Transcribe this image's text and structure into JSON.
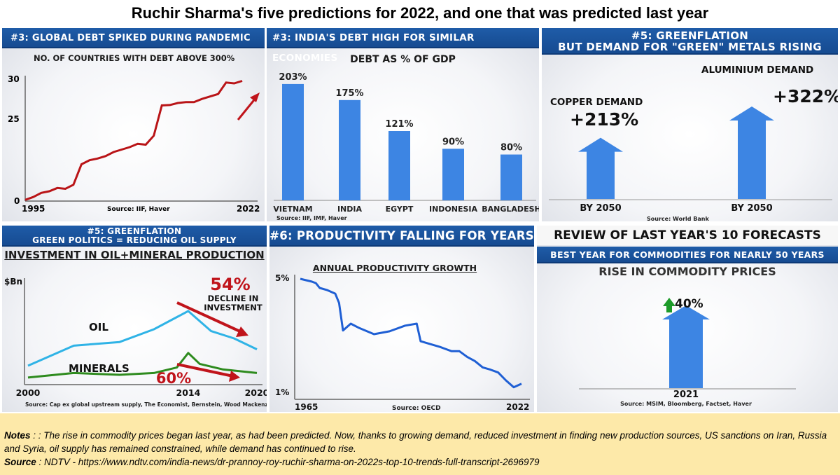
{
  "title": "Ruchir Sharma's five predictions for 2022, and one that was predicted last year",
  "colors": {
    "banner": "#1f5ca8",
    "bar": "#3d85e3",
    "red": "#c0141b",
    "oil": "#2fb3e6",
    "minerals": "#2e8b1e",
    "productivity": "#1f5fd4",
    "green_arrow": "#1e9b2a",
    "notes_bg": "#fde9a9"
  },
  "panels": {
    "p1": {
      "banner": "#3: GLOBAL DEBT SPIKED DURING PANDEMIC",
      "chart_title": "NO. OF COUNTRIES WITH DEBT ABOVE 300%",
      "source": "Source: IIF, Haver"
    },
    "p2": {
      "banner": "#3: INDIA'S DEBT HIGH FOR SIMILAR ECONOMIES",
      "chart_title": "DEBT AS % OF GDP",
      "source": "Source: IIF, IMF, Haver"
    },
    "p3": {
      "banner_line1": "#5: GREENFLATION",
      "banner_line2": "BUT DEMAND FOR \"GREEN\" METALS RISING",
      "source": "Source: World Bank"
    },
    "p4": {
      "banner_line1": "#5: GREENFLATION",
      "banner_line2": "GREEN POLITICS = REDUCING OIL SUPPLY",
      "chart_title": "INVESTMENT IN OIL+MINERAL PRODUCTION",
      "source": "Source: Cap ex global upstream supply, The Economist, Bernstein, Wood Mackenzie"
    },
    "p5": {
      "banner": "#6: PRODUCTIVITY FALLING FOR YEARS",
      "chart_title": "ANNUAL PRODUCTIVITY GROWTH",
      "source": "Source: OECD"
    },
    "p6": {
      "header": "REVIEW OF LAST YEAR'S 10 FORECASTS",
      "banner": "BEST YEAR FOR COMMODITIES FOR NEARLY 50 YEARS",
      "chart_title": "RISE IN COMMODITY PRICES",
      "source": "Source: MSIM, Bloomberg, Factset, Haver"
    }
  },
  "notes": {
    "label": "Notes",
    "text": " : : The rise in commodity prices began last year, as had been predicted.  Now, thanks to growing demand, reduced investment in finding new production sources, US sanctions on Iran, Russia and Syria, oil supply has remained constrained, while demand has continued to rise.",
    "source_label": "Source",
    "source_text": " : NDTV - https://www.ndtv.com/india-news/dr-prannoy-roy-ruchir-sharma-on-2022s-top-10-trends-full-transcript-2696979"
  },
  "chart_data": [
    {
      "type": "line",
      "title": "NO. OF COUNTRIES WITH DEBT ABOVE 300%",
      "x_ticks": [
        "1995",
        "2022"
      ],
      "y_ticks": [
        "0",
        "25",
        "30"
      ],
      "ylim": [
        0,
        30
      ],
      "xlim": [
        1995,
        2022
      ],
      "series": [
        {
          "x": [
            1995,
            1996,
            1997,
            1998,
            1999,
            2000,
            2001,
            2002,
            2003,
            2004,
            2005,
            2006,
            2007,
            2008,
            2009,
            2010,
            2011,
            2012,
            2013,
            2014,
            2015,
            2016,
            2017,
            2018,
            2019,
            2020,
            2021,
            2022
          ],
          "values": [
            0.3,
            1,
            2,
            2.4,
            3.2,
            3,
            4,
            9,
            10,
            10.4,
            11,
            12,
            12.6,
            13.2,
            14,
            13.8,
            16,
            23.4,
            23.5,
            24,
            24.2,
            24.2,
            25,
            25.6,
            26.2,
            29,
            28.8,
            29.4
          ]
        }
      ],
      "annotations": [
        {
          "type": "arrow",
          "direction": "up"
        }
      ]
    },
    {
      "type": "bar",
      "title": "DEBT AS % OF GDP",
      "categories": [
        "VIETNAM",
        "INDIA",
        "EGYPT",
        "INDONESIA",
        "BANGLADESH"
      ],
      "values": [
        203,
        175,
        121,
        90,
        80
      ],
      "data_labels": [
        "203%",
        "175%",
        "121%",
        "90%",
        "80%"
      ],
      "ylim": [
        0,
        220
      ]
    },
    {
      "type": "bar",
      "categories": [
        "BY 2050",
        "BY 2050"
      ],
      "series": [
        {
          "names": [
            "COPPER DEMAND",
            "ALUMINIUM DEMAND"
          ],
          "values": [
            213,
            322
          ]
        }
      ],
      "data_labels": [
        "+213%",
        "+322%"
      ],
      "name_labels": [
        "COPPER DEMAND",
        "ALUMINIUM DEMAND"
      ]
    },
    {
      "type": "line",
      "title": "INVESTMENT IN OIL+MINERAL PRODUCTION",
      "ylabel": "$Bn",
      "x_ticks": [
        "2000",
        "2014",
        "2020"
      ],
      "xlim": [
        2000,
        2020
      ],
      "ylim": [
        0,
        100
      ],
      "series": [
        {
          "name": "OIL",
          "x": [
            2000,
            2004,
            2008,
            2011,
            2014,
            2016,
            2018,
            2020
          ],
          "values": [
            20,
            42,
            46,
            60,
            80,
            58,
            50,
            38
          ]
        },
        {
          "name": "MINERALS",
          "x": [
            2000,
            2004,
            2008,
            2011,
            2013,
            2014,
            2015,
            2017,
            2020
          ],
          "values": [
            7,
            12,
            10,
            12,
            18,
            34,
            22,
            16,
            12
          ]
        }
      ],
      "annotations": [
        "54%",
        "DECLINE IN",
        "INVESTMENT",
        "60%"
      ]
    },
    {
      "type": "line",
      "title": "ANNUAL PRODUCTIVITY GROWTH",
      "x_ticks": [
        "1965",
        "2022"
      ],
      "y_ticks": [
        "1%",
        "5%"
      ],
      "xlim": [
        1965,
        2022
      ],
      "ylim": [
        1,
        5
      ],
      "series": [
        {
          "x": [
            1965,
            1968,
            1969,
            1970,
            1972,
            1974,
            1975,
            1976,
            1977,
            1978,
            1980,
            1984,
            1988,
            1992,
            1995,
            1996,
            1998,
            2001,
            2004,
            2006,
            2008,
            2010,
            2012,
            2014,
            2016,
            2018,
            2020,
            2022
          ],
          "values": [
            5.0,
            4.9,
            4.85,
            4.68,
            4.6,
            4.48,
            4.15,
            3.18,
            3.3,
            3.42,
            3.28,
            3.05,
            3.15,
            3.35,
            3.42,
            2.8,
            2.72,
            2.6,
            2.45,
            2.45,
            2.25,
            2.1,
            1.88,
            1.8,
            1.7,
            1.42,
            1.18,
            1.3
          ]
        }
      ]
    },
    {
      "type": "bar",
      "title": "RISE IN COMMODITY PRICES",
      "categories": [
        "2021"
      ],
      "values": [
        40
      ],
      "data_labels": [
        "40%"
      ]
    }
  ]
}
